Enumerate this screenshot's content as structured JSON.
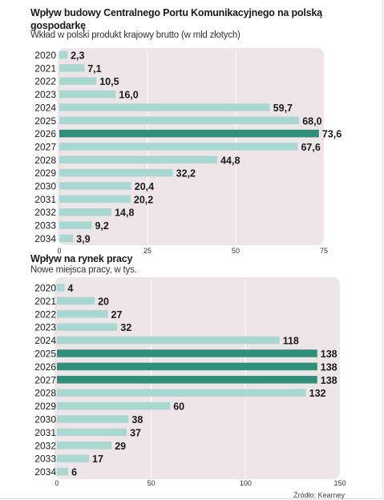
{
  "chart_data": [
    {
      "type": "bar",
      "orientation": "horizontal",
      "title": "Wpływ budowy Centralnego Portu Komunikacyjnego na polską gospodarkę",
      "subtitle": "Wkład w polski produkt krajowy brutto (w mld złotych)",
      "categories": [
        "2020",
        "2021",
        "2022",
        "2023",
        "2024",
        "2025",
        "2026",
        "2027",
        "2028",
        "2029",
        "2030",
        "2031",
        "2032",
        "2033",
        "2034"
      ],
      "values": [
        2.3,
        7.1,
        10.5,
        16.0,
        59.7,
        68.0,
        73.6,
        67.6,
        44.8,
        32.2,
        20.4,
        20.2,
        14.8,
        9.2,
        3.9
      ],
      "value_labels": [
        "2,3",
        "7,1",
        "10,5",
        "16,0",
        "59,7",
        "68,0",
        "73,6",
        "67,6",
        "44,8",
        "32,2",
        "20,4",
        "20,2",
        "14,8",
        "9,2",
        "3,9"
      ],
      "highlighted": [
        "2026"
      ],
      "xlim": [
        0,
        75
      ],
      "xticks": [
        "0",
        "25",
        "50",
        "75"
      ],
      "grid": true
    },
    {
      "type": "bar",
      "orientation": "horizontal",
      "title": "Wpływ na rynek pracy",
      "subtitle": "Nowe miejsca pracy, w tys.",
      "categories": [
        "2020",
        "2021",
        "2022",
        "2023",
        "2024",
        "2025",
        "2026",
        "2027",
        "2028",
        "2029",
        "2030",
        "2031",
        "2032",
        "2033",
        "2034"
      ],
      "values": [
        4,
        20,
        27,
        32,
        118,
        138,
        138,
        138,
        132,
        60,
        38,
        37,
        29,
        17,
        6
      ],
      "value_labels": [
        "4",
        "20",
        "27",
        "32",
        "118",
        "138",
        "138",
        "138",
        "132",
        "60",
        "38",
        "37",
        "29",
        "17",
        "6"
      ],
      "highlighted": [
        "2025",
        "2026",
        "2027"
      ],
      "xlim": [
        0,
        150
      ],
      "xticks": [
        "0",
        "50",
        "100",
        "150"
      ],
      "grid": true
    }
  ],
  "source": "Źródło: Kearney",
  "colors": {
    "bar": "#a9d8d2",
    "highlight": "#2f8f78",
    "panel_bg": "#ede5e8",
    "grid": "#ffffff"
  }
}
